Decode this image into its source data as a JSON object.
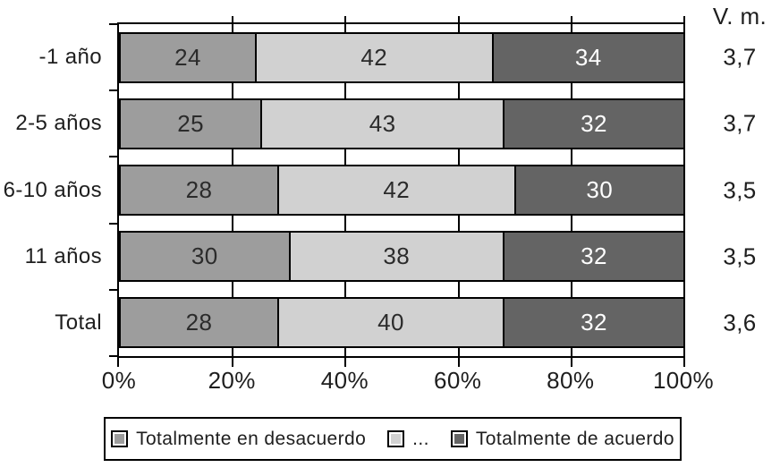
{
  "chart_data": {
    "type": "bar",
    "orientation": "horizontal-stacked",
    "categories": [
      "-1 año",
      "2-5 años",
      "6-10 años",
      "11 años",
      "Total"
    ],
    "series": [
      {
        "name": "Totalmente en desacuerdo",
        "color": "#9d9d9d",
        "text_color": "#2b2b2b",
        "values": [
          24,
          25,
          28,
          30,
          28
        ]
      },
      {
        "name": "...",
        "color": "#d1d1d1",
        "text_color": "#2b2b2b",
        "values": [
          42,
          43,
          42,
          38,
          40
        ]
      },
      {
        "name": "Totalmente de acuerdo",
        "color": "#646464",
        "text_color": "#ffffff",
        "values": [
          34,
          32,
          30,
          32,
          32
        ]
      }
    ],
    "x_ticks": [
      "0%",
      "20%",
      "40%",
      "60%",
      "80%",
      "100%"
    ],
    "xlim": [
      0,
      100
    ],
    "grid": true,
    "legend_position": "bottom",
    "right_column": {
      "header": "V. m.",
      "values": [
        "3,7",
        "3,7",
        "3,5",
        "3,5",
        "3,6"
      ]
    }
  },
  "colors": {
    "axis": "#000000",
    "background": "#ffffff",
    "text": "#1e1e1e"
  }
}
